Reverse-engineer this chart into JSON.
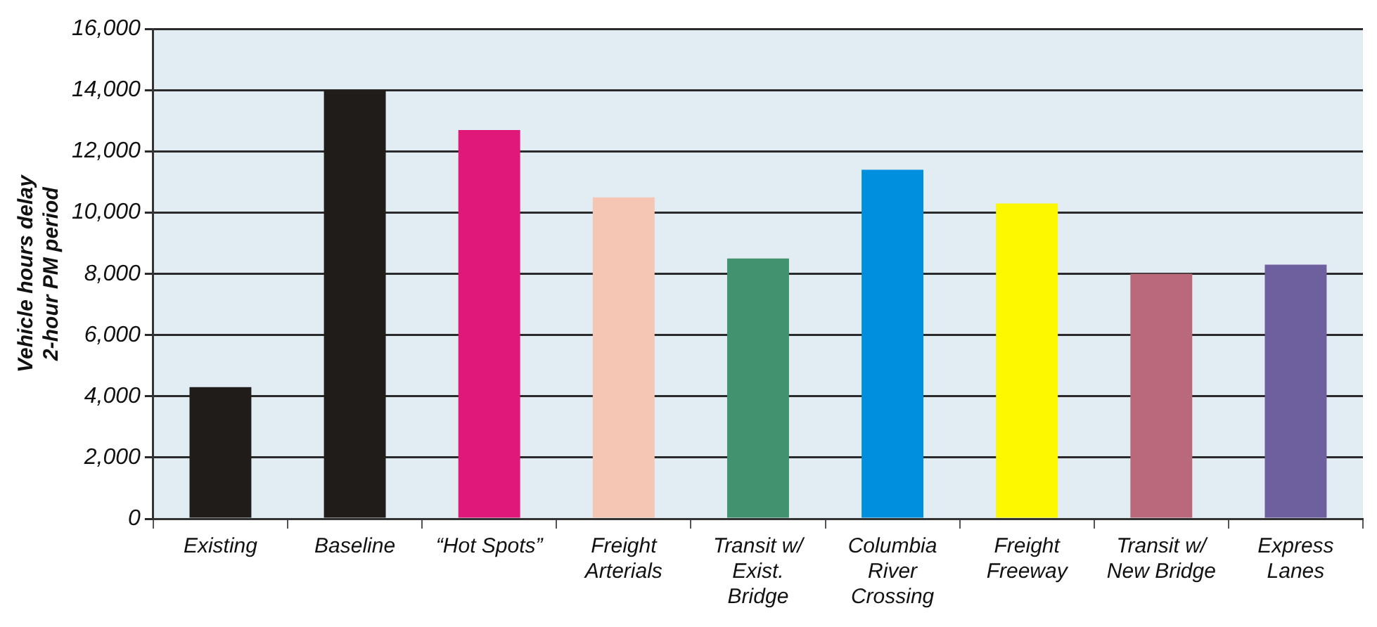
{
  "chart_data": {
    "type": "bar",
    "ylabel": "Vehicle hours delay 2-hour PM period",
    "categories": [
      "Existing",
      "Baseline",
      "“Hot Spots”",
      "Freight Arterials",
      "Transit w/ Exist. Bridge",
      "Columbia River Crossing",
      "Freight Freeway",
      "Transit w/ New Bridge",
      "Express Lanes"
    ],
    "values": [
      4300,
      14000,
      12700,
      10500,
      8500,
      11400,
      10300,
      8000,
      8300
    ],
    "colors": [
      "#201c19",
      "#201c19",
      "#e0187a",
      "#f5c6b4",
      "#42926f",
      "#008fdf",
      "#fcf800",
      "#b9697a",
      "#6e5f9f"
    ],
    "ylim": [
      0,
      16000
    ],
    "yticks": [
      0,
      {
        "value": 2000,
        "label": "2,000"
      },
      {
        "value": 4000,
        "label": "4,000"
      },
      {
        "value": 6000,
        "label": "6,000"
      },
      {
        "value": 8000,
        "label": "8,000"
      },
      {
        "value": 10000,
        "label": "10,000"
      },
      {
        "value": 12000,
        "label": "12,000"
      },
      {
        "value": 14000,
        "label": "14,000"
      },
      {
        "value": 16000,
        "label": "16,000"
      }
    ],
    "grid": "y",
    "legend": false
  }
}
